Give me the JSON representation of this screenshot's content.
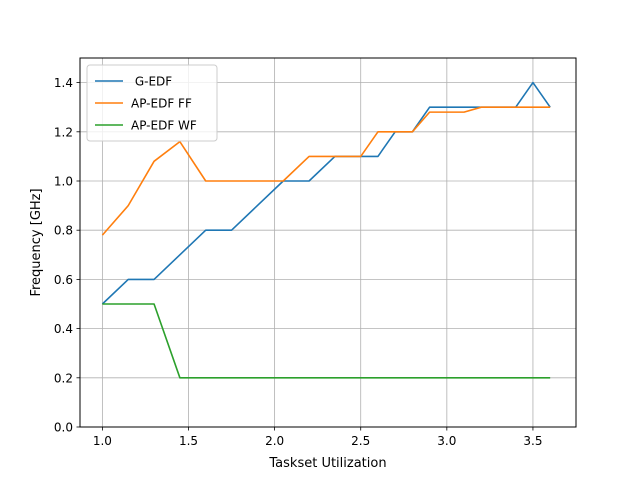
{
  "chart_data": {
    "type": "line",
    "title": "",
    "xlabel": "Taskset Utilization",
    "ylabel": "Frequency [GHz]",
    "xlim": [
      0.87,
      3.75
    ],
    "ylim": [
      0.0,
      1.5
    ],
    "xticks": [
      1.0,
      1.5,
      2.0,
      2.5,
      3.0,
      3.5
    ],
    "xtick_labels": [
      "1.0",
      "1.5",
      "2.0",
      "2.5",
      "3.0",
      "3.5"
    ],
    "yticks": [
      0.0,
      0.2,
      0.4,
      0.6,
      0.8,
      1.0,
      1.2,
      1.4
    ],
    "ytick_labels": [
      "0.0",
      "0.2",
      "0.4",
      "0.6",
      "0.8",
      "1.0",
      "1.2",
      "1.4"
    ],
    "grid": true,
    "legend_position": "top-left",
    "series": [
      {
        "name": " G-EDF",
        "color": "#1f77b4",
        "x": [
          1.0,
          1.15,
          1.3,
          1.45,
          1.6,
          1.75,
          1.9,
          2.05,
          2.2,
          2.35,
          2.5,
          2.6,
          2.7,
          2.8,
          2.9,
          3.0,
          3.1,
          3.2,
          3.3,
          3.4,
          3.5,
          3.6
        ],
        "y": [
          0.5,
          0.6,
          0.6,
          0.7,
          0.8,
          0.8,
          0.9,
          1.0,
          1.0,
          1.1,
          1.1,
          1.1,
          1.2,
          1.2,
          1.3,
          1.3,
          1.3,
          1.3,
          1.3,
          1.3,
          1.4,
          1.3
        ]
      },
      {
        "name": "AP-EDF FF",
        "color": "#ff7f0e",
        "x": [
          1.0,
          1.15,
          1.3,
          1.45,
          1.6,
          1.75,
          1.9,
          2.05,
          2.2,
          2.35,
          2.5,
          2.6,
          2.7,
          2.8,
          2.9,
          3.0,
          3.1,
          3.2,
          3.3,
          3.4,
          3.5,
          3.6
        ],
        "y": [
          0.78,
          0.9,
          1.08,
          1.16,
          1.0,
          1.0,
          1.0,
          1.0,
          1.1,
          1.1,
          1.1,
          1.2,
          1.2,
          1.2,
          1.28,
          1.28,
          1.28,
          1.3,
          1.3,
          1.3,
          1.3,
          1.3
        ]
      },
      {
        "name": "AP-EDF WF",
        "color": "#2ca02c",
        "x": [
          1.0,
          1.15,
          1.3,
          1.45,
          1.6,
          1.75,
          1.9,
          2.05,
          2.2,
          2.35,
          2.5,
          2.6,
          2.7,
          2.8,
          2.9,
          3.0,
          3.1,
          3.2,
          3.3,
          3.4,
          3.5,
          3.6
        ],
        "y": [
          0.5,
          0.5,
          0.5,
          0.2,
          0.2,
          0.2,
          0.2,
          0.2,
          0.2,
          0.2,
          0.2,
          0.2,
          0.2,
          0.2,
          0.2,
          0.2,
          0.2,
          0.2,
          0.2,
          0.2,
          0.2,
          0.2
        ]
      }
    ]
  }
}
